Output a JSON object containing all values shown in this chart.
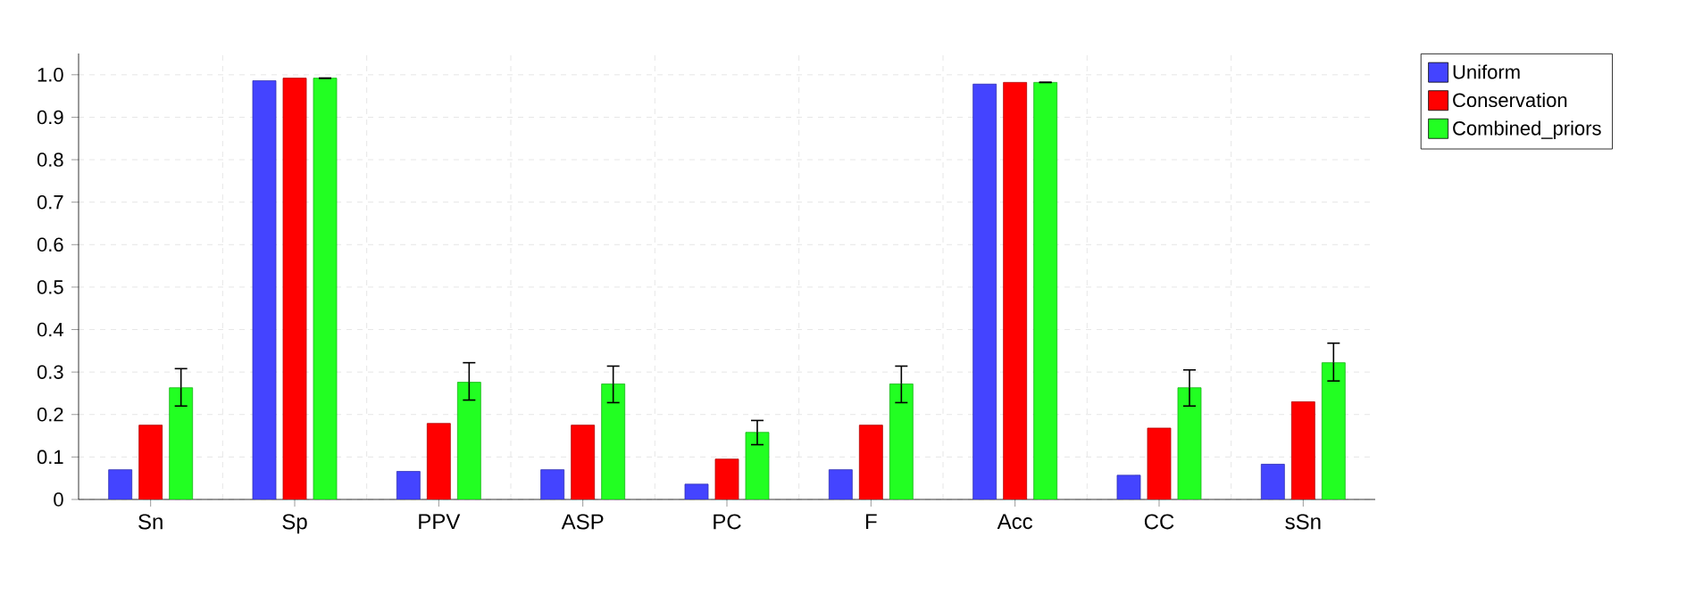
{
  "chart_data": {
    "type": "bar",
    "categories": [
      "Sn",
      "Sp",
      "PPV",
      "ASP",
      "PC",
      "F",
      "Acc",
      "CC",
      "sSn"
    ],
    "series": [
      {
        "name": "Uniform",
        "color": "#4444ff",
        "values": [
          0.07,
          0.986,
          0.066,
          0.07,
          0.036,
          0.07,
          0.978,
          0.057,
          0.083
        ]
      },
      {
        "name": "Conservation",
        "color": "#ff0000",
        "values": [
          0.175,
          0.992,
          0.179,
          0.175,
          0.095,
          0.175,
          0.982,
          0.168,
          0.23
        ]
      },
      {
        "name": "Combined_priors",
        "color": "#22ff22",
        "values": [
          0.263,
          0.992,
          0.276,
          0.272,
          0.158,
          0.272,
          0.982,
          0.263,
          0.322
        ],
        "errors": [
          [
            0.22,
            0.308
          ],
          [
            0.992,
            0.992
          ],
          [
            0.234,
            0.322
          ],
          [
            0.228,
            0.314
          ],
          [
            0.129,
            0.186
          ],
          [
            0.228,
            0.314
          ],
          [
            0.982,
            0.982
          ],
          [
            0.22,
            0.305
          ],
          [
            0.279,
            0.368
          ]
        ]
      }
    ],
    "ylim": [
      0,
      1.05
    ],
    "yticks": [
      0,
      0.1,
      0.2,
      0.3,
      0.4,
      0.5,
      0.6,
      0.7,
      0.8,
      0.9,
      {
        "value": 1.0,
        "label": "1.0"
      }
    ],
    "grid": true,
    "legend": "top right"
  }
}
